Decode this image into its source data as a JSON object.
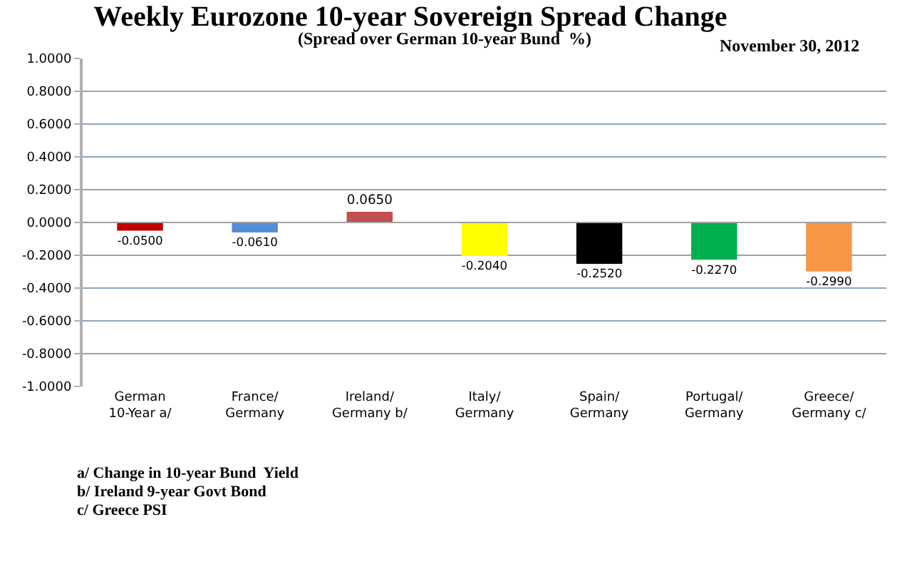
{
  "chart_data": {
    "type": "bar",
    "title": "Weekly Eurozone 10-year Sovereign Spread Change",
    "subtitle": "(Spread over German 10-year Bund  %)",
    "categories": [
      "German 10-Year a/",
      "France/ Germany",
      "Ireland/ Germany b/",
      "Italy/ Germany",
      "Spain/ Germany",
      "Portugal/ Germany",
      "Greece/ Germany c/"
    ],
    "values": [
      -0.05,
      -0.061,
      0.065,
      -0.204,
      -0.252,
      -0.227,
      -0.299
    ],
    "colors": [
      "#c00000",
      "#558ed5",
      "#c0504d",
      "#ffff00",
      "#000000",
      "#00b050",
      "#f79646"
    ],
    "value_labels": [
      "-0.0500",
      "-0.0610",
      "0.0650",
      "-0.2040",
      "-0.2520",
      "-0.2270",
      "-0.2990"
    ],
    "ylim": [
      -1,
      1
    ],
    "yticks": [
      {
        "value": -1,
        "label": "-1.0000"
      },
      {
        "value": -0.8,
        "label": "-0.8000"
      },
      {
        "value": -0.6,
        "label": "-0.6000"
      },
      {
        "value": -0.4,
        "label": "-0.4000"
      },
      {
        "value": -0.2,
        "label": "-0.2000"
      },
      {
        "value": 0,
        "label": "0.0000"
      },
      {
        "value": 0.2,
        "label": "0.2000"
      },
      {
        "value": 0.4,
        "label": "0.4000"
      },
      {
        "value": 0.6,
        "label": "0.6000"
      },
      {
        "value": 0.8,
        "label": "0.8000"
      },
      {
        "value": 1,
        "label": "1.0000"
      }
    ],
    "grid": "y",
    "legend": false,
    "annotations": [
      "November 30, 2012",
      "a/ Change in 10-year Bund  Yield",
      "b/ Ireland 9-year Govt Bond",
      "c/ Greece PSI"
    ]
  }
}
